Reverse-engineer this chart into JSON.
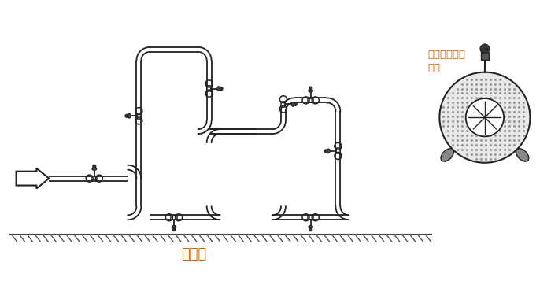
{
  "background_color": "#ffffff",
  "line_color": "#222222",
  "text_color": "#222222",
  "orange_text_color": "#cc6600",
  "ground_label": "水平面",
  "annotation_text": "允许任意角度\n安装"
}
